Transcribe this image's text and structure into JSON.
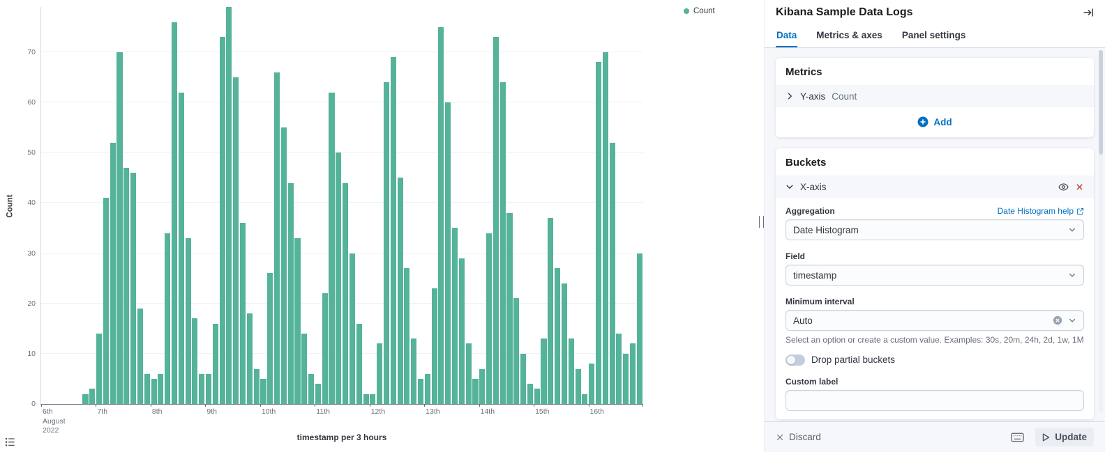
{
  "chart_data": {
    "type": "bar",
    "title": "",
    "xlabel": "timestamp per 3 hours",
    "ylabel": "Count",
    "legend": [
      "Count"
    ],
    "legend_position": "top-right",
    "bar_color": "#54B399",
    "grid": true,
    "ylim": [
      0,
      79
    ],
    "yticks": [
      0,
      10,
      20,
      30,
      40,
      50,
      60,
      70
    ],
    "x_axis": {
      "days": 11,
      "slots_per_day": 8,
      "interval": "3 hours",
      "start_slot": 6,
      "day_labels": [
        "6th",
        "7th",
        "8th",
        "9th",
        "10th",
        "11th",
        "12th",
        "13th",
        "14th",
        "15th",
        "16th"
      ],
      "first_label_sublines": [
        "August",
        "2022"
      ]
    },
    "values": [
      2,
      3,
      14,
      41,
      52,
      70,
      47,
      46,
      19,
      6,
      5,
      6,
      34,
      76,
      62,
      33,
      17,
      6,
      6,
      16,
      73,
      79,
      65,
      36,
      18,
      7,
      5,
      26,
      66,
      55,
      44,
      33,
      14,
      6,
      4,
      22,
      62,
      50,
      44,
      30,
      16,
      2,
      2,
      12,
      64,
      69,
      45,
      27,
      13,
      5,
      6,
      23,
      75,
      60,
      35,
      29,
      12,
      5,
      7,
      34,
      73,
      64,
      38,
      21,
      10,
      4,
      3,
      13,
      37,
      27,
      24,
      13,
      7,
      2,
      8,
      68,
      70,
      52,
      14,
      10,
      12,
      30
    ]
  },
  "panel": {
    "title": "Kibana Sample Data Logs",
    "tabs": [
      {
        "label": "Data",
        "selected": true
      },
      {
        "label": "Metrics & axes",
        "selected": false
      },
      {
        "label": "Panel settings",
        "selected": false
      }
    ],
    "metrics": {
      "heading": "Metrics",
      "row_label": "Y-axis",
      "row_value": "Count",
      "add_label": "Add"
    },
    "buckets": {
      "heading": "Buckets",
      "row_label": "X-axis",
      "aggregation_label": "Aggregation",
      "aggregation_help_label": "Date Histogram help",
      "aggregation_value": "Date Histogram",
      "field_label": "Field",
      "field_value": "timestamp",
      "min_interval_label": "Minimum interval",
      "min_interval_value": "Auto",
      "min_interval_help": "Select an option or create a custom value. Examples: 30s, 20m, 24h, 2d, 1w, 1M",
      "drop_partial_label": "Drop partial buckets",
      "drop_partial_on": false,
      "custom_label_label": "Custom label",
      "custom_label_value": ""
    },
    "footer": {
      "discard_label": "Discard",
      "update_label": "Update"
    }
  },
  "colors": {
    "accent_blue": "#0071C2",
    "bar_green": "#54B399",
    "danger_red": "#BD271E"
  }
}
